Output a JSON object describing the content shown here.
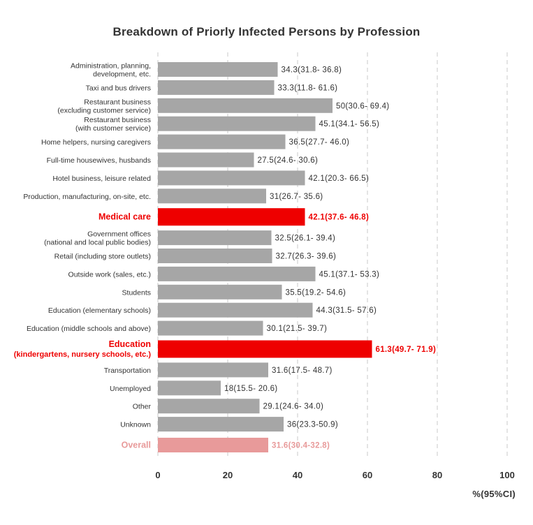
{
  "chart_data": {
    "type": "bar",
    "orientation": "horizontal",
    "title": "Breakdown of Priorly Infected Persons by Profession",
    "xlabel": "%(95%CI)",
    "ylabel": "",
    "xlim": [
      0,
      100
    ],
    "xticks": [
      0,
      20,
      40,
      60,
      80,
      100
    ],
    "grid": true,
    "colors": {
      "default": "#a6a6a6",
      "highlight": "#ee0000",
      "overall": "#e89a9a",
      "text": "#333333"
    },
    "categories": [
      {
        "label": [
          "Administration, planning,",
          "development, etc."
        ],
        "value": 34.3,
        "label_value": "34.3(31.8- 36.8)",
        "style": "default"
      },
      {
        "label": [
          "Taxi and bus drivers"
        ],
        "value": 33.3,
        "label_value": "33.3(11.8- 61.6)",
        "style": "default"
      },
      {
        "label": [
          "Restaurant business",
          "(excluding customer service)"
        ],
        "value": 50,
        "label_value": "50(30.6- 69.4)",
        "style": "default"
      },
      {
        "label": [
          "Restaurant business",
          "(with customer service)"
        ],
        "value": 45.1,
        "label_value": "45.1(34.1- 56.5)",
        "style": "default"
      },
      {
        "label": [
          "Home helpers, nursing caregivers"
        ],
        "value": 36.5,
        "label_value": "36.5(27.7- 46.0)",
        "style": "default"
      },
      {
        "label": [
          "Full-time housewives, husbands"
        ],
        "value": 27.5,
        "label_value": "27.5(24.6- 30.6)",
        "style": "default"
      },
      {
        "label": [
          "Hotel business, leisure related"
        ],
        "value": 42.1,
        "label_value": "42.1(20.3- 66.5)",
        "style": "default"
      },
      {
        "label": [
          "Production, manufacturing, on-site, etc."
        ],
        "value": 31,
        "label_value": "31(26.7- 35.6)",
        "style": "default"
      },
      {
        "label": [
          "Medical care"
        ],
        "value": 42.1,
        "label_value": "42.1(37.6- 46.8)",
        "style": "highlight"
      },
      {
        "label": [
          "Government offices",
          "(national and local public bodies)"
        ],
        "value": 32.5,
        "label_value": "32.5(26.1- 39.4)",
        "style": "default"
      },
      {
        "label": [
          "Retail (including store outlets)"
        ],
        "value": 32.7,
        "label_value": "32.7(26.3- 39.6)",
        "style": "default"
      },
      {
        "label": [
          "Outside work (sales, etc.)"
        ],
        "value": 45.1,
        "label_value": "45.1(37.1- 53.3)",
        "style": "default"
      },
      {
        "label": [
          "Students"
        ],
        "value": 35.5,
        "label_value": "35.5(19.2- 54.6)",
        "style": "default"
      },
      {
        "label": [
          "Education (elementary schools)"
        ],
        "value": 44.3,
        "label_value": "44.3(31.5- 57.6)",
        "style": "default"
      },
      {
        "label": [
          "Education (middle schools and above)"
        ],
        "value": 30.1,
        "label_value": "30.1(21.5- 39.7)",
        "style": "default"
      },
      {
        "label": [
          "Education",
          "(kindergartens, nursery schools, etc.)"
        ],
        "value": 61.3,
        "label_value": "61.3(49.7- 71.9)",
        "style": "highlight"
      },
      {
        "label": [
          "Transportation"
        ],
        "value": 31.6,
        "label_value": "31.6(17.5- 48.7)",
        "style": "default"
      },
      {
        "label": [
          "Unemployed"
        ],
        "value": 18,
        "label_value": "18(15.5- 20.6)",
        "style": "default"
      },
      {
        "label": [
          "Other"
        ],
        "value": 29.1,
        "label_value": "29.1(24.6- 34.0)",
        "style": "default"
      },
      {
        "label": [
          "Unknown"
        ],
        "value": 36,
        "label_value": "36(23.3-50.9)",
        "style": "default"
      },
      {
        "label": [
          "Overall"
        ],
        "value": 31.6,
        "label_value": "31.6(30.4-32.8)",
        "style": "overall"
      }
    ]
  }
}
